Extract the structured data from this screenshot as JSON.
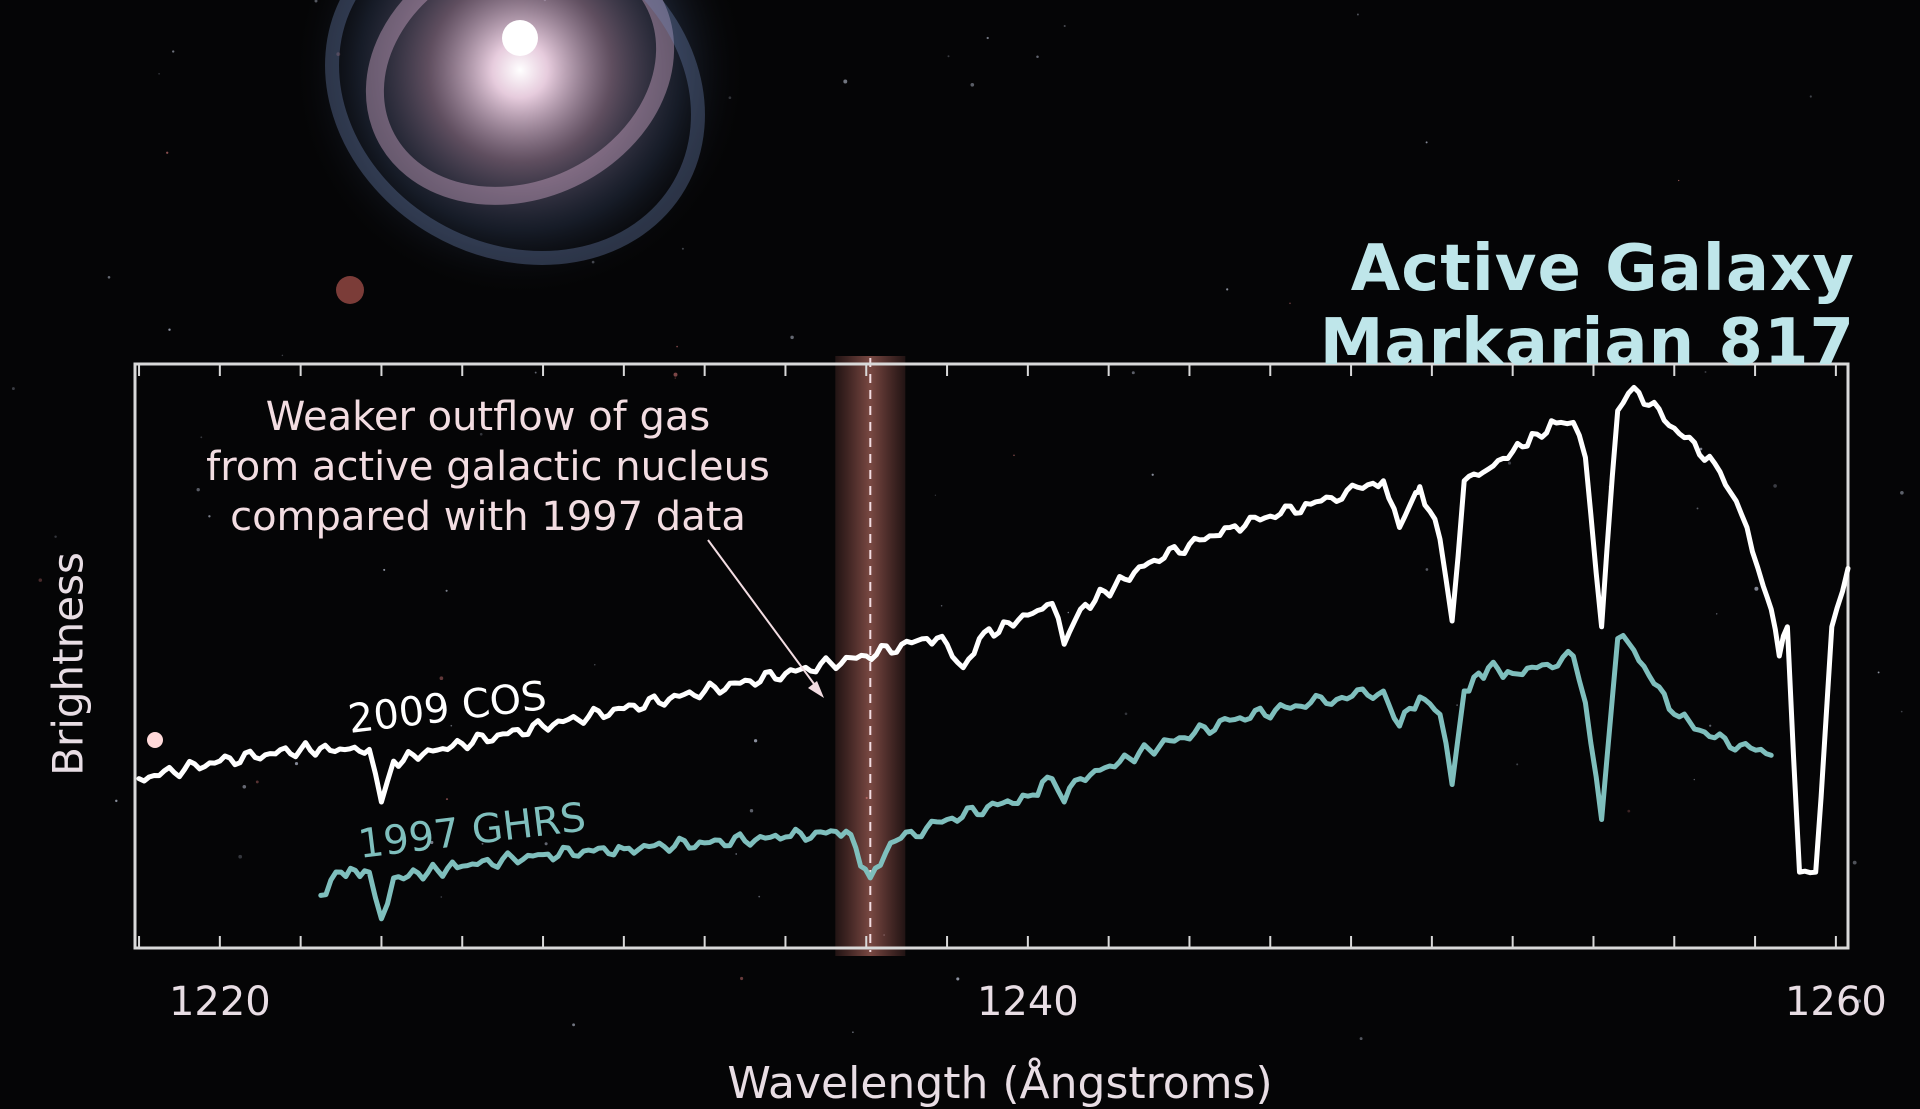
{
  "chart_data": {
    "type": "line",
    "title": "Active Galaxy Markarian 817",
    "xlabel": "Wavelength (Ångstroms)",
    "ylabel": "Brightness",
    "xlim": [
      1217.9,
      1260.3
    ],
    "ylim": [
      0,
      1
    ],
    "xticks": [
      1220,
      1240,
      1260
    ],
    "grid": false,
    "annotation": {
      "lines": [
        "Weaker outflow of gas",
        "from active galactic nucleus",
        "compared with 1997 data"
      ],
      "x": 1236.1
    },
    "series": [
      {
        "name": "2009 COS",
        "color": "#ffffff",
        "x": [
          1218.0,
          1220.0,
          1222.0,
          1223.7,
          1224.0,
          1224.3,
          1226.0,
          1228.0,
          1230.0,
          1232.0,
          1234.0,
          1236.0,
          1237.5,
          1238.0,
          1238.4,
          1238.8,
          1240.0,
          1240.6,
          1240.9,
          1241.3,
          1243.0,
          1245.0,
          1247.0,
          1248.8,
          1249.2,
          1249.6,
          1249.7,
          1250.2,
          1250.5,
          1250.8,
          1251.4,
          1252.0,
          1252.6,
          1253.2,
          1253.5,
          1253.8,
          1254.2,
          1254.6,
          1255.0,
          1256.0,
          1257.0,
          1257.8,
          1258.2,
          1258.4,
          1258.6,
          1258.8,
          1259.1,
          1259.5,
          1259.9,
          1260.3
        ],
        "values": [
          0.29,
          0.32,
          0.34,
          0.34,
          0.25,
          0.32,
          0.35,
          0.38,
          0.41,
          0.44,
          0.47,
          0.5,
          0.53,
          0.52,
          0.48,
          0.53,
          0.57,
          0.59,
          0.52,
          0.58,
          0.66,
          0.72,
          0.76,
          0.8,
          0.72,
          0.78,
          0.79,
          0.7,
          0.56,
          0.8,
          0.82,
          0.85,
          0.88,
          0.9,
          0.9,
          0.84,
          0.55,
          0.92,
          0.96,
          0.89,
          0.83,
          0.72,
          0.62,
          0.58,
          0.5,
          0.55,
          0.13,
          0.13,
          0.55,
          0.65
        ]
      },
      {
        "name": "1997 GHRS",
        "color": "#7fbfbd",
        "x": [
          1222.5,
          1223.0,
          1223.7,
          1224.0,
          1224.3,
          1226.0,
          1228.0,
          1230.0,
          1232.0,
          1234.0,
          1235.5,
          1236.1,
          1236.6,
          1238.0,
          1240.0,
          1240.6,
          1240.9,
          1241.3,
          1243.0,
          1245.0,
          1247.0,
          1248.8,
          1249.2,
          1249.7,
          1250.2,
          1250.5,
          1250.8,
          1251.4,
          1252.0,
          1252.6,
          1253.5,
          1253.8,
          1254.2,
          1254.6,
          1255.0,
          1256.0,
          1257.0,
          1258.4
        ],
        "values": [
          0.09,
          0.13,
          0.13,
          0.05,
          0.12,
          0.14,
          0.16,
          0.17,
          0.18,
          0.19,
          0.2,
          0.12,
          0.18,
          0.22,
          0.26,
          0.29,
          0.25,
          0.29,
          0.34,
          0.39,
          0.42,
          0.44,
          0.38,
          0.43,
          0.4,
          0.28,
          0.44,
          0.48,
          0.47,
          0.48,
          0.5,
          0.42,
          0.22,
          0.53,
          0.51,
          0.4,
          0.36,
          0.33
        ]
      }
    ],
    "series_labels": [
      "2009 COS",
      "1997 GHRS"
    ]
  }
}
